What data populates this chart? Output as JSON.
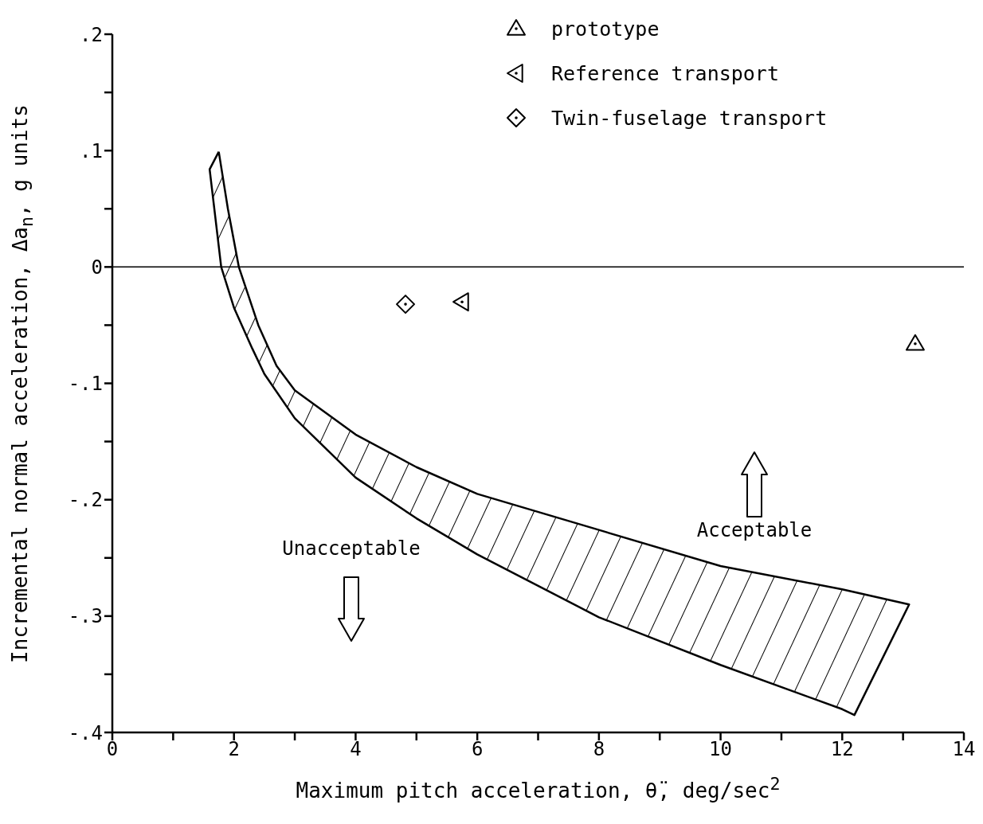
{
  "chart_data": {
    "type": "scatter",
    "xlabel": "Maximum pitch acceleration, θ̈, deg/sec$^{2}$",
    "ylabel": "Incremental normal acceleration, Δa$_{n}$, g units",
    "xlim": [
      0,
      14
    ],
    "xticks": [
      0,
      {
        "value": 1,
        "label": null
      },
      2,
      {
        "value": 3,
        "label": null
      },
      4,
      {
        "value": 5,
        "label": null
      },
      6,
      {
        "value": 7,
        "label": null
      },
      8,
      {
        "value": 9,
        "label": null
      },
      10,
      {
        "value": 11,
        "label": null
      },
      12,
      {
        "value": 13,
        "label": null
      },
      14
    ],
    "ylim": [
      -0.4,
      0.2
    ],
    "yticks": [
      {
        "value": -0.4,
        "label": "-.4"
      },
      {
        "value": -0.35,
        "label": null
      },
      {
        "value": -0.3,
        "label": "-.3"
      },
      {
        "value": -0.25,
        "label": null
      },
      {
        "value": -0.2,
        "label": "-.2"
      },
      {
        "value": -0.15,
        "label": null
      },
      {
        "value": -0.1,
        "label": "-.1"
      },
      {
        "value": -0.05,
        "label": null
      },
      0,
      {
        "value": 0.05,
        "label": null
      },
      {
        "value": 0.1,
        "label": ".1"
      },
      {
        "value": 0.15,
        "label": null
      },
      {
        "value": 0.2,
        "label": ".2"
      }
    ],
    "legend": "top right",
    "ref_lines": [
      {
        "axis": "y",
        "value": 0,
        "color": "#000000"
      }
    ],
    "annotations": [
      "Unacceptable",
      "Acceptable"
    ],
    "series": [
      {
        "name": "prototype",
        "marker": "triangle",
        "color": "#000000",
        "x": [
          13.2
        ],
        "values": [
          -0.066
        ]
      },
      {
        "name": "Reference transport",
        "marker": "triangle-left",
        "color": "#000000",
        "x": [
          5.75
        ],
        "values": [
          -0.03
        ]
      },
      {
        "name": "Twin-fuselage transport",
        "marker": "diamond",
        "color": "#000000",
        "x": [
          4.82
        ],
        "values": [
          -0.032
        ]
      },
      {
        "type": "area",
        "marker": "none",
        "line_style": "solid",
        "color": "#000000",
        "x": [
          1.75,
          1.9,
          2.08,
          2.4,
          2.7,
          3,
          4,
          5,
          6,
          8,
          10,
          12,
          13.1,
          12.2,
          12,
          10,
          8,
          6,
          5,
          4,
          3,
          2.5,
          2.3,
          2,
          1.79,
          1.6,
          1.75
        ],
        "values": [
          0.099,
          0.05,
          0,
          -0.05,
          -0.085,
          -0.106,
          -0.144,
          -0.172,
          -0.195,
          -0.226,
          -0.257,
          -0.277,
          -0.29,
          -0.385,
          -0.38,
          -0.342,
          -0.301,
          -0.247,
          -0.216,
          -0.181,
          -0.13,
          -0.092,
          -0.07,
          -0.035,
          0,
          0.084,
          0.099
        ]
      }
    ]
  }
}
